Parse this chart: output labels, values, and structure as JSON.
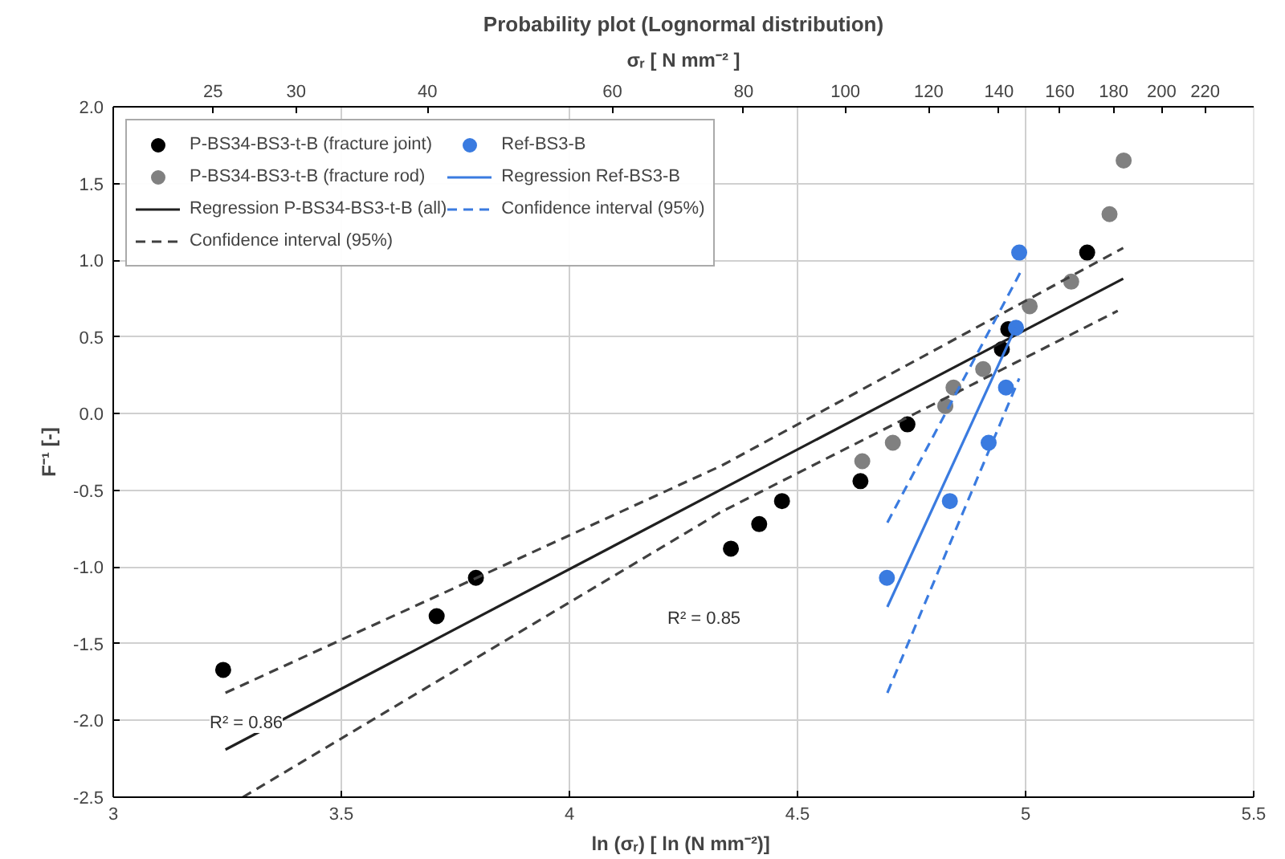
{
  "chart_data": {
    "type": "scatter",
    "title": "Probability plot (Lognormal distribution)",
    "xlabel": "ln (σᵣ)  [ ln (N mm⁻²)]",
    "ylabel": "F⁻¹ [-]",
    "x2label": "σᵣ [ N mm⁻² ]",
    "xlim": [
      3,
      5.5
    ],
    "xticks": [
      3,
      3.5,
      4,
      4.5,
      5,
      5.5
    ],
    "ylim": [
      -2.5,
      2.0
    ],
    "yticks": [
      {
        "value": -2.5,
        "label": "-2.5"
      },
      {
        "value": -2,
        "label": "-2.0"
      },
      {
        "value": -1.5,
        "label": "-1.5"
      },
      {
        "value": -1,
        "label": "-1.0"
      },
      {
        "value": -0.5,
        "label": "-0.5"
      },
      {
        "value": 0,
        "label": "0.0"
      },
      {
        "value": 0.5,
        "label": "0.5"
      },
      {
        "value": 1,
        "label": "1.0"
      },
      {
        "value": 1.5,
        "label": "1.5"
      },
      {
        "value": 2,
        "label": "2.0"
      }
    ],
    "x2lim": [
      20.09,
      244.69
    ],
    "x2ticks": [
      25,
      30,
      40,
      60,
      80,
      100,
      120,
      140,
      160,
      180,
      200,
      220
    ],
    "log": "x2",
    "grid": true,
    "legend": "top left",
    "series": [
      {
        "name": "P-BS34-BS3-t-B (fracture joint)",
        "marker": "circle",
        "color": "#000000",
        "x": [
          3.241,
          3.709,
          3.795,
          4.354,
          4.416,
          4.466,
          4.638,
          4.741,
          4.948,
          4.962,
          5.135
        ],
        "values": [
          -1.67,
          -1.32,
          -1.07,
          -0.88,
          -0.72,
          -0.57,
          -0.44,
          -0.07,
          0.42,
          0.55,
          1.05
        ]
      },
      {
        "name": "P-BS34-BS3-t-B (fracture rod)",
        "marker": "circle",
        "color": "#808080",
        "x": [
          4.642,
          4.709,
          4.824,
          4.842,
          4.907,
          5.009,
          5.1,
          5.184,
          5.215
        ],
        "values": [
          -0.31,
          -0.19,
          0.05,
          0.17,
          0.29,
          0.7,
          0.86,
          1.3,
          1.65
        ]
      },
      {
        "name": "Regression P-BS34-BS3-t-B (all)",
        "type": "line",
        "line_style": "solid",
        "color": "#202020",
        "x": [
          3.246,
          5.214
        ],
        "values": [
          -2.19,
          0.88
        ]
      },
      {
        "name": "Confidence interval (95%)",
        "type": "line",
        "line_style": "dashed",
        "color": "#404040",
        "x": [
          3.246,
          4.333,
          5.214
        ],
        "values": [
          -1.82,
          -0.34,
          1.08
        ]
      },
      {
        "type": "line",
        "line_style": "dashed",
        "color": "#404040",
        "x": [
          3.284,
          4.333,
          5.202
        ],
        "values": [
          -2.5,
          -0.64,
          0.67
        ]
      },
      {
        "name": "Ref-BS3-B",
        "marker": "circle",
        "color": "#3a7be0",
        "x": [
          4.696,
          4.834,
          4.919,
          4.957,
          4.979,
          4.986
        ],
        "values": [
          -1.07,
          -0.57,
          -0.19,
          0.17,
          0.56,
          1.05
        ]
      },
      {
        "name": "Regression Ref-BS3-B",
        "type": "line",
        "line_style": "solid",
        "color": "#3a7be0",
        "x": [
          4.697,
          4.978
        ],
        "values": [
          -1.26,
          0.56
        ]
      },
      {
        "name": "Confidence interval (95%)",
        "type": "line",
        "line_style": "dashed",
        "color": "#3a7be0",
        "x": [
          4.697,
          4.992
        ],
        "values": [
          -0.71,
          0.94
        ]
      },
      {
        "type": "line",
        "line_style": "dashed",
        "color": "#3a7be0",
        "x": [
          4.697,
          4.986
        ],
        "values": [
          -1.82,
          0.23
        ]
      }
    ],
    "annotations": [
      "R² = 0.86",
      "R² = 0.85"
    ]
  }
}
